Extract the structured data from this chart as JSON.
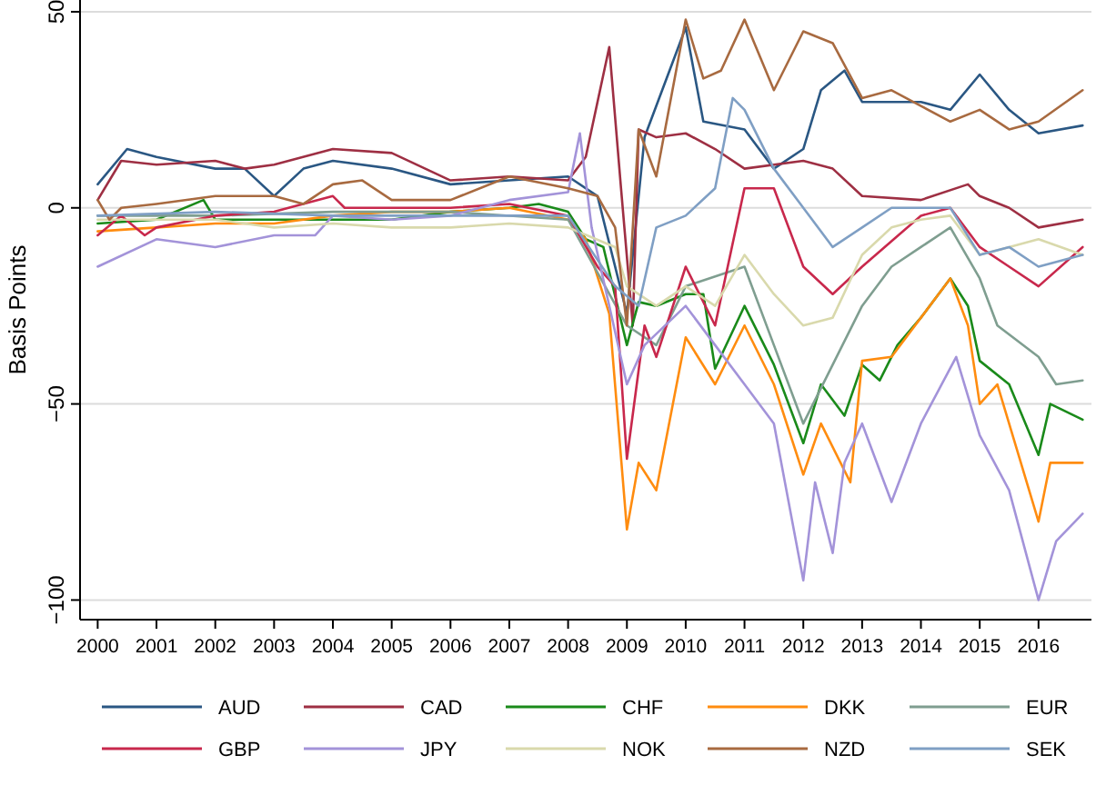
{
  "chart_data": {
    "type": "line",
    "ylabel": "Basis Points",
    "xlim": [
      1999.7,
      2016.9
    ],
    "ylim": [
      -105,
      53
    ],
    "xticks": [
      2000,
      2001,
      2002,
      2003,
      2004,
      2005,
      2006,
      2007,
      2008,
      2009,
      2010,
      2011,
      2012,
      2013,
      2014,
      2015,
      2016
    ],
    "yticks": [
      {
        "value": -100,
        "label": "−100"
      },
      {
        "value": -50,
        "label": "−50"
      },
      0,
      50
    ],
    "grid": "y",
    "legend": "bottom",
    "marker": "none",
    "line_style": "solid",
    "series": [
      {
        "name": "AUD",
        "color": "#2a5783",
        "x": [
          2000,
          2000.5,
          2001,
          2002,
          2002.5,
          2003,
          2003.5,
          2004,
          2005,
          2006,
          2007,
          2008,
          2008.5,
          2009,
          2009.3,
          2010,
          2010.3,
          2011,
          2011.5,
          2012,
          2012.3,
          2012.7,
          2013,
          2014,
          2014.5,
          2015,
          2015.5,
          2016,
          2016.75
        ],
        "values": [
          6,
          15,
          13,
          10,
          10,
          3,
          10,
          12,
          10,
          6,
          7,
          8,
          3,
          -27,
          18,
          46,
          22,
          20,
          10,
          15,
          30,
          35,
          27,
          27,
          25,
          34,
          25,
          19,
          21
        ]
      },
      {
        "name": "CAD",
        "color": "#9e2f43",
        "x": [
          2000,
          2000.4,
          2001,
          2002,
          2002.5,
          2003,
          2004,
          2005,
          2006,
          2007,
          2008,
          2008.3,
          2008.7,
          2008.9,
          2009.1,
          2009.2,
          2009.5,
          2010,
          2010.5,
          2011,
          2012,
          2012.5,
          2013,
          2014,
          2014.8,
          2015,
          2015.5,
          2016,
          2016.75
        ],
        "values": [
          2,
          12,
          11,
          12,
          10,
          11,
          15,
          14,
          7,
          8,
          7,
          13,
          41,
          5,
          -30,
          20,
          18,
          19,
          15,
          10,
          12,
          10,
          3,
          2,
          6,
          3,
          0,
          -5,
          -3
        ]
      },
      {
        "name": "CHF",
        "color": "#1a8a1a",
        "x": [
          2000,
          2001,
          2001.8,
          2002,
          2004,
          2005,
          2006,
          2007,
          2007.5,
          2008,
          2008.3,
          2008.6,
          2009,
          2009.2,
          2009.5,
          2010,
          2010.3,
          2010.5,
          2011,
          2011.5,
          2012,
          2012.3,
          2012.7,
          2013,
          2013.3,
          2013.6,
          2014,
          2014.5,
          2014.8,
          2015,
          2015.5,
          2016,
          2016.2,
          2016.75
        ],
        "values": [
          -4,
          -3,
          2,
          -3,
          -3,
          -3,
          -1,
          0,
          1,
          -1,
          -8,
          -10,
          -35,
          -24,
          -25,
          -22,
          -22,
          -41,
          -25,
          -40,
          -60,
          -45,
          -53,
          -40,
          -44,
          -35,
          -28,
          -18,
          -25,
          -39,
          -45,
          -63,
          -50,
          -54
        ]
      },
      {
        "name": "DKK",
        "color": "#ff8c0f",
        "x": [
          2000,
          2001,
          2002,
          2003,
          2004,
          2005,
          2006,
          2007,
          2008,
          2008.3,
          2008.7,
          2009,
          2009.2,
          2009.5,
          2010,
          2010.5,
          2011,
          2011.5,
          2012,
          2012.3,
          2012.8,
          2013,
          2013.5,
          2014,
          2014.5,
          2014.8,
          2015,
          2015.3,
          2016,
          2016.2,
          2016.75
        ],
        "values": [
          -6,
          -5,
          -4,
          -4,
          -2,
          -1,
          -1,
          0,
          -3,
          -8,
          -27,
          -82,
          -65,
          -72,
          -33,
          -45,
          -30,
          -45,
          -68,
          -55,
          -70,
          -39,
          -38,
          -28,
          -18,
          -30,
          -50,
          -45,
          -80,
          -65,
          -65
        ]
      },
      {
        "name": "EUR",
        "color": "#7f9e90",
        "x": [
          2000,
          2002,
          2004,
          2006,
          2008,
          2009,
          2009.5,
          2010,
          2011,
          2011.5,
          2012,
          2012.5,
          2013,
          2013.5,
          2014,
          2014.5,
          2015,
          2015.3,
          2016,
          2016.3,
          2016.75
        ],
        "values": [
          -2,
          -2,
          -1,
          -1,
          -3,
          -30,
          -35,
          -20,
          -15,
          -35,
          -55,
          -40,
          -25,
          -15,
          -10,
          -5,
          -18,
          -30,
          -38,
          -45,
          -44
        ]
      },
      {
        "name": "GBP",
        "color": "#c8284c",
        "x": [
          2000,
          2000.4,
          2000.8,
          2001,
          2002,
          2003,
          2004,
          2004.2,
          2005,
          2006,
          2007,
          2008,
          2008.5,
          2008.8,
          2009,
          2009.3,
          2009.5,
          2010,
          2010.5,
          2011,
          2011.5,
          2012,
          2012.5,
          2013,
          2014,
          2014.5,
          2015,
          2015.5,
          2016,
          2016.75
        ],
        "values": [
          -7,
          -2,
          -7,
          -5,
          -2,
          -1,
          3,
          0,
          0,
          0,
          1,
          -2,
          -15,
          -20,
          -64,
          -30,
          -38,
          -15,
          -30,
          5,
          5,
          -15,
          -22,
          -15,
          -2,
          0,
          -10,
          -15,
          -20,
          -10
        ]
      },
      {
        "name": "JPY",
        "color": "#a393d9",
        "x": [
          2000,
          2001,
          2002,
          2003,
          2003.7,
          2004,
          2005,
          2006,
          2007,
          2008,
          2008.2,
          2008.4,
          2009,
          2009.3,
          2010,
          2010.5,
          2011,
          2011.5,
          2012,
          2012.2,
          2012.5,
          2012.7,
          2013,
          2013.5,
          2014,
          2014.6,
          2015,
          2015.5,
          2016,
          2016.3,
          2016.75
        ],
        "values": [
          -15,
          -8,
          -10,
          -7,
          -7,
          -2,
          -3,
          -2,
          2,
          4,
          19,
          -5,
          -45,
          -35,
          -25,
          -35,
          -45,
          -55,
          -95,
          -70,
          -88,
          -65,
          -55,
          -75,
          -55,
          -38,
          -58,
          -72,
          -100,
          -85,
          -78
        ]
      },
      {
        "name": "NOK",
        "color": "#d9d9ac",
        "x": [
          2000,
          2002,
          2003,
          2004,
          2005,
          2006,
          2007,
          2008,
          2008.8,
          2009,
          2009.5,
          2010,
          2010.5,
          2011,
          2011.5,
          2012,
          2012.5,
          2013,
          2013.5,
          2014,
          2014.5,
          2015,
          2015.5,
          2016,
          2016.75
        ],
        "values": [
          -3,
          -3,
          -5,
          -4,
          -5,
          -5,
          -4,
          -5,
          -10,
          -20,
          -25,
          -20,
          -25,
          -12,
          -22,
          -30,
          -28,
          -12,
          -5,
          -3,
          -2,
          -12,
          -10,
          -8,
          -12
        ]
      },
      {
        "name": "NZD",
        "color": "#a86a40",
        "x": [
          2000,
          2000.2,
          2000.4,
          2001,
          2002,
          2003,
          2003.5,
          2004,
          2004.5,
          2005,
          2006,
          2007,
          2008,
          2008.5,
          2008.8,
          2009,
          2009.2,
          2009.5,
          2010,
          2010.3,
          2010.6,
          2011,
          2011.5,
          2012,
          2012.5,
          2013,
          2013.5,
          2014,
          2014.5,
          2015,
          2015.5,
          2016,
          2016.75
        ],
        "values": [
          2,
          -3,
          0,
          1,
          3,
          3,
          1,
          6,
          7,
          2,
          2,
          8,
          5,
          3,
          -5,
          -30,
          20,
          8,
          48,
          33,
          35,
          48,
          30,
          45,
          42,
          28,
          30,
          26,
          22,
          25,
          20,
          22,
          30
        ]
      },
      {
        "name": "SEK",
        "color": "#7f9fc4",
        "x": [
          2000,
          2002,
          2004,
          2005,
          2006,
          2007,
          2008,
          2008.8,
          2009.2,
          2009.5,
          2010,
          2010.5,
          2010.8,
          2011,
          2011.5,
          2012,
          2012.5,
          2013,
          2013.5,
          2014,
          2014.5,
          2015,
          2015.5,
          2016,
          2016.75
        ],
        "values": [
          -2,
          -1,
          -2,
          -2,
          -2,
          -2,
          -2,
          -20,
          -25,
          -5,
          -2,
          5,
          28,
          25,
          10,
          0,
          -10,
          -5,
          0,
          0,
          0,
          -12,
          -10,
          -15,
          -12
        ]
      }
    ]
  }
}
